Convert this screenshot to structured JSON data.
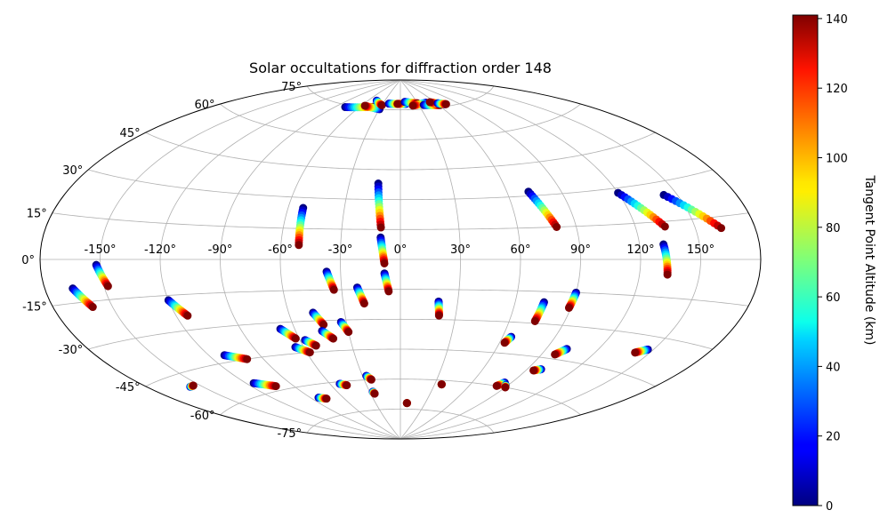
{
  "chart_data": {
    "type": "scatter",
    "projection": "aitoff",
    "title": "Solar occultations for diffraction order 148",
    "grid": true,
    "x_ticks": [
      "-150°",
      "-120°",
      "-90°",
      "-60°",
      "-30°",
      "0°",
      "30°",
      "60°",
      "90°",
      "120°",
      "150°"
    ],
    "x_tick_values": [
      -150,
      -120,
      -90,
      -60,
      -30,
      0,
      30,
      60,
      90,
      120,
      150
    ],
    "y_ticks": [
      "-75°",
      "-60°",
      "-45°",
      "-30°",
      "-15°",
      "0°",
      "15°",
      "30°",
      "45°",
      "60°",
      "75°"
    ],
    "y_tick_values": [
      -75,
      -60,
      -45,
      -30,
      -15,
      0,
      15,
      30,
      45,
      60,
      75
    ],
    "colorbar": {
      "label": "Tangent Point Altitude (km)",
      "range": [
        0,
        141
      ],
      "ticks": [
        "0",
        "20",
        "40",
        "60",
        "80",
        "100",
        "120",
        "140"
      ],
      "tick_values": [
        0,
        20,
        40,
        60,
        80,
        100,
        120,
        140
      ],
      "colormap": "jet"
    },
    "tracks": [
      {
        "lon_start": -166,
        "lat_start": -10,
        "lon_end": -160,
        "lat_end": -17
      },
      {
        "lon_start": -152,
        "lat_start": -2,
        "lon_end": -148,
        "lat_end": -10
      },
      {
        "lon_start": -120,
        "lat_start": -17,
        "lon_end": -114,
        "lat_end": -24
      },
      {
        "lon_start": -111,
        "lat_start": -42,
        "lon_end": -100,
        "lat_end": -45
      },
      {
        "lon_start": -115,
        "lat_start": -55,
        "lon_end": -103,
        "lat_end": -58
      },
      {
        "lon_start": -157,
        "lat_start": -50,
        "lon_end": -154,
        "lat_end": -50
      },
      {
        "lon_start": -83,
        "lat_start": -66,
        "lon_end": -77,
        "lat_end": -67
      },
      {
        "lon_start": -68,
        "lat_start": -33,
        "lon_end": -62,
        "lat_end": -38
      },
      {
        "lon_start": -65,
        "lat_start": -42,
        "lon_end": -58,
        "lat_end": -45
      },
      {
        "lon_start": -57,
        "lat_start": -39,
        "lon_end": -52,
        "lat_end": -42
      },
      {
        "lon_start": -52,
        "lat_start": -61,
        "lon_end": -47,
        "lat_end": -62
      },
      {
        "lon_start": -52,
        "lat_start": 25,
        "lon_end": -51,
        "lat_end": 7
      },
      {
        "lon_start": -47,
        "lat_start": -26,
        "lon_end": -43,
        "lat_end": -32
      },
      {
        "lon_start": -45,
        "lat_start": -35,
        "lon_end": -40,
        "lat_end": -39
      },
      {
        "lon_start": -37,
        "lat_start": -6,
        "lon_end": -34,
        "lat_end": -15
      },
      {
        "lon_start": -33,
        "lat_start": -31,
        "lon_end": -30,
        "lat_end": -36
      },
      {
        "lon_start": -27,
        "lat_start": -58,
        "lon_end": -24,
        "lat_end": -60
      },
      {
        "lon_start": -27,
        "lat_start": -66,
        "lon_end": -26,
        "lat_end": -67
      },
      {
        "lon_start": -22,
        "lat_start": -14,
        "lon_end": -19,
        "lat_end": -22
      },
      {
        "lon_start": -13,
        "lat_start": 38,
        "lon_end": -10,
        "lat_end": 16
      },
      {
        "lon_start": -10,
        "lat_start": 11,
        "lon_end": -8,
        "lat_end": -2
      },
      {
        "lon_start": -8,
        "lat_start": -7,
        "lon_end": -6,
        "lat_end": -16
      },
      {
        "lon_start": 8,
        "lat_start": -72,
        "lon_end": 8,
        "lat_end": -72
      },
      {
        "lon_start": 20,
        "lat_start": -21,
        "lon_end": 21,
        "lat_end": -28
      },
      {
        "lon_start": 36,
        "lat_start": -62,
        "lon_end": 36,
        "lat_end": -62
      },
      {
        "lon_start": 65,
        "lat_start": -37,
        "lon_end": 63,
        "lat_end": -40
      },
      {
        "lon_start": 72,
        "lat_start": 32,
        "lon_end": 80,
        "lat_end": 15
      },
      {
        "lon_start": 75,
        "lat_start": -20,
        "lon_end": 74,
        "lat_end": -29
      },
      {
        "lon_start": 85,
        "lat_start": -58,
        "lon_end": 82,
        "lat_end": -60
      },
      {
        "lon_start": 88,
        "lat_start": -59,
        "lon_end": 90,
        "lat_end": -60
      },
      {
        "lon_start": 90,
        "lat_start": -15,
        "lon_end": 89,
        "lat_end": -22
      },
      {
        "lon_start": 102,
        "lat_start": -40,
        "lon_end": 98,
        "lat_end": -43
      },
      {
        "lon_start": 99,
        "lat_start": -50,
        "lon_end": 95,
        "lat_end": -51
      },
      {
        "lon_start": 120,
        "lat_start": 28,
        "lon_end": 135,
        "lat_end": 13
      },
      {
        "lon_start": 132,
        "lat_start": 6,
        "lon_end": 134,
        "lat_end": -6
      },
      {
        "lon_start": 143,
        "lat_start": 25,
        "lon_end": 163,
        "lat_end": 11
      },
      {
        "lon_start": 147,
        "lat_start": -35,
        "lon_end": 142,
        "lat_end": -37
      },
      {
        "lon_start": -78,
        "lat_start": 74,
        "lon_end": -40,
        "lat_end": 76
      },
      {
        "lon_start": -30,
        "lat_start": 75,
        "lon_end": -55,
        "lat_end": 76
      },
      {
        "lon_start": -45,
        "lat_start": 79,
        "lon_end": -30,
        "lat_end": 77
      },
      {
        "lon_start": -20,
        "lat_start": 78,
        "lon_end": 0,
        "lat_end": 78
      },
      {
        "lon_start": 10,
        "lat_start": 78,
        "lon_end": -5,
        "lat_end": 78
      },
      {
        "lon_start": 8,
        "lat_start": 79,
        "lon_end": 30,
        "lat_end": 78
      },
      {
        "lon_start": 45,
        "lat_start": 78,
        "lon_end": 20,
        "lat_end": 77
      },
      {
        "lon_start": 38,
        "lat_start": 77,
        "lon_end": 62,
        "lat_end": 76
      },
      {
        "lon_start": 70,
        "lat_start": 76,
        "lon_end": 52,
        "lat_end": 78
      },
      {
        "lon_start": 62,
        "lat_start": 77,
        "lon_end": 72,
        "lat_end": 76
      }
    ]
  }
}
